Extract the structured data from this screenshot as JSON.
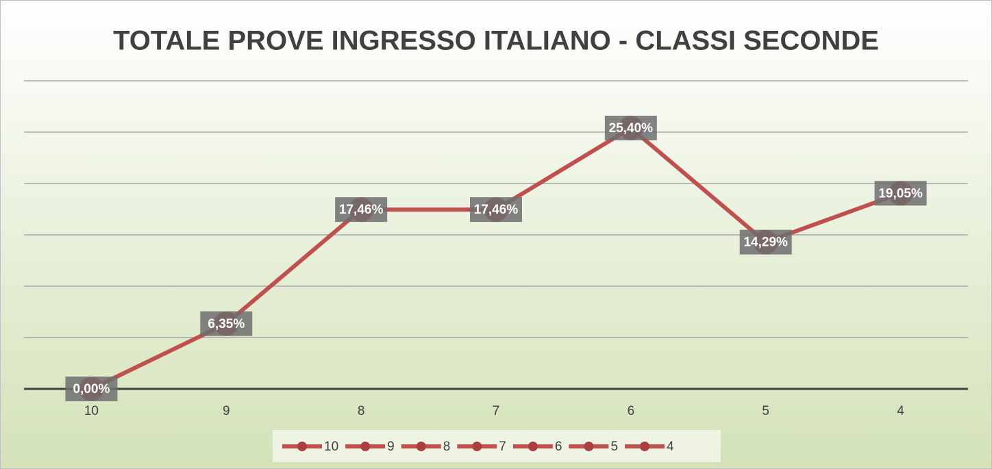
{
  "chart_data": {
    "type": "line",
    "title": "TOTALE PROVE INGRESSO ITALIANO - CLASSI SECONDE",
    "categories": [
      "10",
      "9",
      "8",
      "7",
      "6",
      "5",
      "4"
    ],
    "values": [
      0,
      6.35,
      17.46,
      17.46,
      25.4,
      14.29,
      19.05
    ],
    "value_labels": [
      "0,00%",
      "6,35%",
      "17,46%",
      "17,46%",
      "25,40%",
      "14,29%",
      "19,05%"
    ],
    "color": "#c0504d",
    "ylim": [
      0,
      30
    ],
    "yticks": [
      0,
      5,
      10,
      15,
      20,
      25,
      30
    ],
    "grid": true,
    "legend": "bottom"
  }
}
